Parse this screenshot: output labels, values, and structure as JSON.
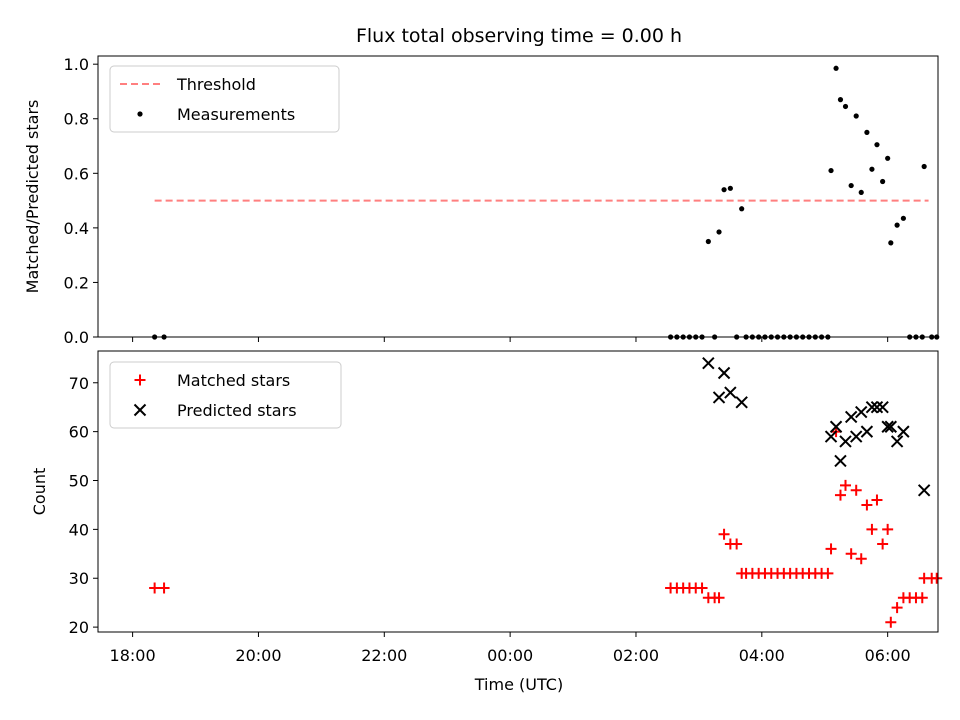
{
  "chart_data": {
    "title": "Flux total observing time = 0.00 h",
    "xlabel": "Time (UTC)",
    "x_tick_labels": [
      "18:00",
      "20:00",
      "22:00",
      "00:00",
      "02:00",
      "04:00",
      "06:00"
    ],
    "x_unit": "hours since 18:00 UTC",
    "xlim": [
      -0.55,
      12.8
    ],
    "grid": false,
    "panels": [
      {
        "type": "scatter",
        "ylabel": "Matched/Predicted stars",
        "ylim": [
          0,
          1.03
        ],
        "y_ticks": [
          0.0,
          0.2,
          0.4,
          0.6,
          0.8,
          1.0
        ],
        "y_tick_labels": [
          "0.0",
          "0.2",
          "0.4",
          "0.6",
          "0.8",
          "1.0"
        ],
        "legend_position": "top-left",
        "threshold": {
          "name": "Threshold",
          "value": 0.5,
          "x_range": [
            0.35,
            12.65
          ],
          "color": "#ff7f7f",
          "style": "dashed"
        },
        "series": [
          {
            "name": "Measurements",
            "marker": "dot",
            "color": "#000000",
            "points": [
              [
                0.35,
                0.0
              ],
              [
                0.5,
                0.0
              ],
              [
                8.55,
                0.0
              ],
              [
                8.65,
                0.0
              ],
              [
                8.75,
                0.0
              ],
              [
                8.85,
                0.0
              ],
              [
                8.95,
                0.0
              ],
              [
                9.05,
                0.0
              ],
              [
                9.15,
                0.35
              ],
              [
                9.25,
                0.0
              ],
              [
                9.32,
                0.385
              ],
              [
                9.4,
                0.54
              ],
              [
                9.5,
                0.545
              ],
              [
                9.6,
                0.0
              ],
              [
                9.68,
                0.47
              ],
              [
                9.75,
                0.0
              ],
              [
                9.85,
                0.0
              ],
              [
                9.95,
                0.0
              ],
              [
                10.05,
                0.0
              ],
              [
                10.15,
                0.0
              ],
              [
                10.25,
                0.0
              ],
              [
                10.35,
                0.0
              ],
              [
                10.45,
                0.0
              ],
              [
                10.55,
                0.0
              ],
              [
                10.65,
                0.0
              ],
              [
                10.75,
                0.0
              ],
              [
                10.85,
                0.0
              ],
              [
                10.95,
                0.0
              ],
              [
                11.05,
                0.0
              ],
              [
                11.1,
                0.61
              ],
              [
                11.18,
                0.985
              ],
              [
                11.25,
                0.87
              ],
              [
                11.33,
                0.845
              ],
              [
                11.42,
                0.555
              ],
              [
                11.5,
                0.81
              ],
              [
                11.58,
                0.53
              ],
              [
                11.67,
                0.75
              ],
              [
                11.75,
                0.615
              ],
              [
                11.83,
                0.705
              ],
              [
                11.92,
                0.57
              ],
              [
                12.0,
                0.655
              ],
              [
                12.05,
                0.345
              ],
              [
                12.15,
                0.41
              ],
              [
                12.25,
                0.435
              ],
              [
                12.35,
                0.0
              ],
              [
                12.45,
                0.0
              ],
              [
                12.55,
                0.0
              ],
              [
                12.58,
                0.625
              ],
              [
                12.7,
                0.0
              ],
              [
                12.78,
                0.0
              ]
            ]
          }
        ]
      },
      {
        "type": "scatter",
        "ylabel": "Count",
        "ylim": [
          19,
          76.5
        ],
        "y_ticks": [
          20,
          30,
          40,
          50,
          60,
          70
        ],
        "y_tick_labels": [
          "20",
          "30",
          "40",
          "50",
          "60",
          "70"
        ],
        "legend_position": "top-left",
        "series": [
          {
            "name": "Matched stars",
            "marker": "plus",
            "color": "#ff0000",
            "points": [
              [
                0.35,
                28
              ],
              [
                0.5,
                28
              ],
              [
                8.55,
                28
              ],
              [
                8.65,
                28
              ],
              [
                8.75,
                28
              ],
              [
                8.85,
                28
              ],
              [
                8.95,
                28
              ],
              [
                9.05,
                28
              ],
              [
                9.15,
                26
              ],
              [
                9.25,
                26
              ],
              [
                9.32,
                26
              ],
              [
                9.4,
                39
              ],
              [
                9.5,
                37
              ],
              [
                9.6,
                37
              ],
              [
                9.68,
                31
              ],
              [
                9.75,
                31
              ],
              [
                9.85,
                31
              ],
              [
                9.95,
                31
              ],
              [
                10.05,
                31
              ],
              [
                10.15,
                31
              ],
              [
                10.25,
                31
              ],
              [
                10.35,
                31
              ],
              [
                10.45,
                31
              ],
              [
                10.55,
                31
              ],
              [
                10.65,
                31
              ],
              [
                10.75,
                31
              ],
              [
                10.85,
                31
              ],
              [
                10.95,
                31
              ],
              [
                11.05,
                31
              ],
              [
                11.1,
                36
              ],
              [
                11.18,
                60
              ],
              [
                11.25,
                47
              ],
              [
                11.33,
                49
              ],
              [
                11.42,
                35
              ],
              [
                11.5,
                48
              ],
              [
                11.58,
                34
              ],
              [
                11.67,
                45
              ],
              [
                11.75,
                40
              ],
              [
                11.83,
                46
              ],
              [
                11.92,
                37
              ],
              [
                12.0,
                40
              ],
              [
                12.05,
                21
              ],
              [
                12.15,
                24
              ],
              [
                12.25,
                26
              ],
              [
                12.35,
                26
              ],
              [
                12.45,
                26
              ],
              [
                12.55,
                26
              ],
              [
                12.58,
                30
              ],
              [
                12.7,
                30
              ],
              [
                12.78,
                30
              ]
            ]
          },
          {
            "name": "Predicted stars",
            "marker": "x",
            "color": "#000000",
            "points": [
              [
                9.15,
                74
              ],
              [
                9.32,
                67
              ],
              [
                9.4,
                72
              ],
              [
                9.5,
                68
              ],
              [
                9.68,
                66
              ],
              [
                11.1,
                59
              ],
              [
                11.18,
                61
              ],
              [
                11.25,
                54
              ],
              [
                11.33,
                58
              ],
              [
                11.42,
                63
              ],
              [
                11.5,
                59
              ],
              [
                11.58,
                64
              ],
              [
                11.67,
                60
              ],
              [
                11.75,
                65
              ],
              [
                11.83,
                65
              ],
              [
                11.92,
                65
              ],
              [
                12.0,
                61
              ],
              [
                12.05,
                61
              ],
              [
                12.15,
                58
              ],
              [
                12.25,
                60
              ],
              [
                12.58,
                48
              ]
            ]
          }
        ]
      }
    ]
  }
}
